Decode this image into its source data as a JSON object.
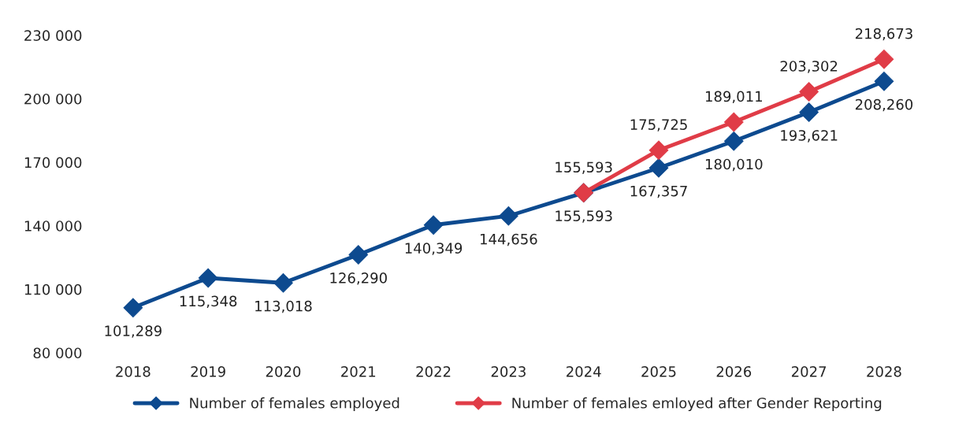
{
  "chart_data": {
    "type": "line",
    "categories": [
      "2018",
      "2019",
      "2020",
      "2021",
      "2022",
      "2023",
      "2024",
      "2025",
      "2026",
      "2027",
      "2028"
    ],
    "series": [
      {
        "name": "Number of females employed",
        "color": "#0d4a8f",
        "values": [
          101289,
          115348,
          113018,
          126290,
          140349,
          144656,
          155593,
          167357,
          180010,
          193621,
          208260
        ],
        "value_labels": [
          "101,289",
          "115,348",
          "113,018",
          "126,290",
          "140,349",
          "144,656",
          "155,593",
          "167,357",
          "180,010",
          "193,621",
          "208,260"
        ]
      },
      {
        "name": "Number of females emloyed after Gender Reporting",
        "color": "#e03c47",
        "values": [
          null,
          null,
          null,
          null,
          null,
          null,
          155593,
          175725,
          189011,
          203302,
          218673
        ],
        "value_labels": [
          null,
          null,
          null,
          null,
          null,
          null,
          "155,593",
          "175,725",
          "189,011",
          "203,302",
          "218,673"
        ]
      }
    ],
    "ylim": [
      80000,
      230000
    ],
    "yticks": [
      {
        "value": 80000,
        "label": "80 000"
      },
      {
        "value": 110000,
        "label": "110 000"
      },
      {
        "value": 140000,
        "label": "140 000"
      },
      {
        "value": 170000,
        "label": "170 000"
      },
      {
        "value": 200000,
        "label": "200 000"
      },
      {
        "value": 230000,
        "label": "230 000"
      }
    ],
    "marker": "diamond",
    "line_style": "solid",
    "grid": false,
    "legend": "bottom"
  }
}
